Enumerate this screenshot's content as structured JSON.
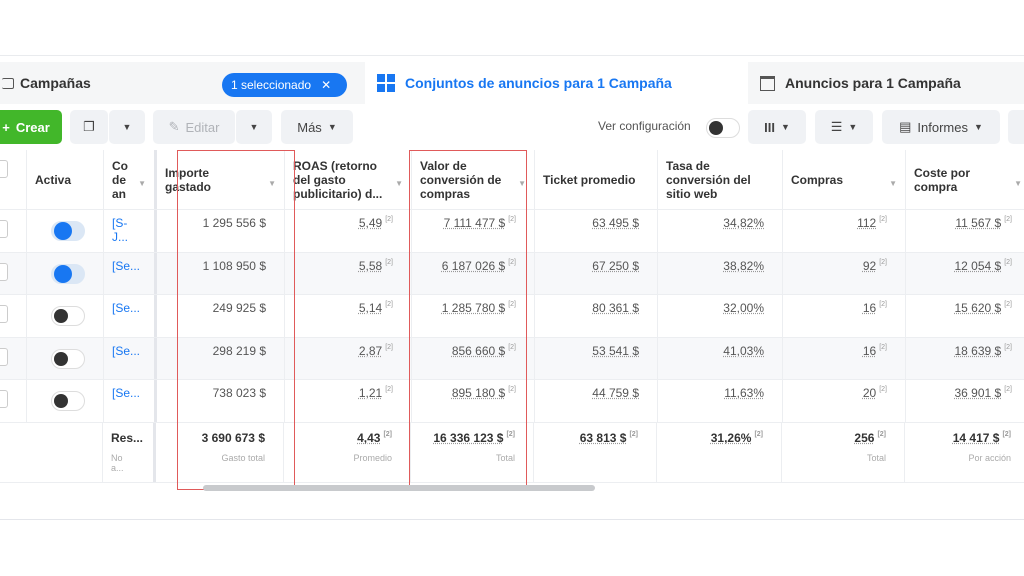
{
  "tabs": {
    "campaigns": "Campañas",
    "selected_pill": "1 seleccionado",
    "adsets": "Conjuntos de anuncios para 1 Campaña",
    "ads": "Anuncios para 1 Campaña"
  },
  "toolbar": {
    "create": "Crear",
    "edit": "Editar",
    "more": "Más",
    "view_settings": "Ver configuración",
    "reports": "Informes"
  },
  "accent": "#1877f2",
  "create_color": "#42b72a",
  "highlight_color": "#e05a5a",
  "columns": [
    "Activa",
    "Co de an",
    "Importe gastado",
    "ROAS (retorno del gasto publicitario) d...",
    "Valor de conversión de compras",
    "Ticket promedio",
    "Tasa de conversión del sitio web",
    "Compras",
    "Coste por compra"
  ],
  "rows": [
    {
      "active": true,
      "name": "[S-J...",
      "spend": "1 295 556 $",
      "roas": "5,49",
      "value": "7 111 477 $",
      "ticket": "63 495 $",
      "rate": "34,82%",
      "purchases": "112",
      "cpp": "11 567 $"
    },
    {
      "active": true,
      "name": "[Se...",
      "spend": "1 108 950 $",
      "roas": "5,58",
      "value": "6 187 026 $",
      "ticket": "67 250 $",
      "rate": "38,82%",
      "purchases": "92",
      "cpp": "12 054 $"
    },
    {
      "active": false,
      "name": "[Se...",
      "spend": "249 925 $",
      "roas": "5,14",
      "value": "1 285 780 $",
      "ticket": "80 361 $",
      "rate": "32,00%",
      "purchases": "16",
      "cpp": "15 620 $"
    },
    {
      "active": false,
      "name": "[Se...",
      "spend": "298 219 $",
      "roas": "2,87",
      "value": "856 660 $",
      "ticket": "53 541 $",
      "rate": "41,03%",
      "purchases": "16",
      "cpp": "18 639 $"
    },
    {
      "active": false,
      "name": "[Se...",
      "spend": "738 023 $",
      "roas": "1,21",
      "value": "895 180 $",
      "ticket": "44 759 $",
      "rate": "11,63%",
      "purchases": "20",
      "cpp": "36 901 $"
    }
  ],
  "summary": {
    "name": "Res...",
    "name_sub": "No a...",
    "spend": "3 690 673 $",
    "spend_sub": "Gasto total",
    "roas": "4,43",
    "roas_sub": "Promedio",
    "value": "16 336 123 $",
    "value_sub": "Total",
    "ticket": "63 813 $",
    "rate": "31,26%",
    "purchases": "256",
    "purchases_sub": "Total",
    "cpp": "14 417 $",
    "cpp_sub": "Por acción"
  },
  "sup": "[2]"
}
